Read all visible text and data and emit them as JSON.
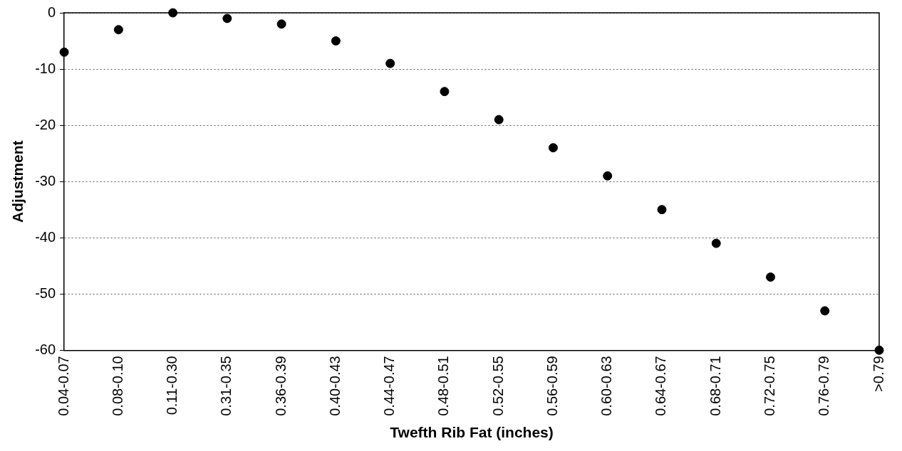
{
  "chart_data": {
    "type": "scatter",
    "xlabel": "Twefth Rib Fat (inches)",
    "ylabel": "Adjustment",
    "categories": [
      "0.04-0.07",
      "0.08-0.10",
      "0.11-0.30",
      "0.31-0.35",
      "0.36-0.39",
      "0.40-0.43",
      "0.44-0.47",
      "0.48-0.51",
      "0.52-0.55",
      "0.56-0.59",
      "0.60-0.63",
      "0.64-0.67",
      "0.68-0.71",
      "0.72-0.75",
      "0.76-0.79",
      ">0.79"
    ],
    "series": [
      {
        "color": "#000000",
        "values": [
          -7,
          -3,
          0,
          -1,
          -2,
          -5,
          -9,
          -14,
          -19,
          -24,
          -29,
          -35,
          -41,
          -47,
          -53,
          -60
        ]
      }
    ],
    "ylim": [
      -60,
      0
    ],
    "yticks": [
      -60,
      -50,
      -40,
      -30,
      -20,
      -10,
      0
    ],
    "grid": "y",
    "marker": "circle",
    "legend": false
  }
}
